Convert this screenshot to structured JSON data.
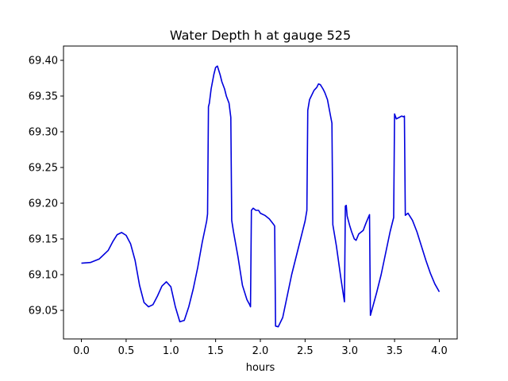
{
  "chart_data": {
    "type": "line",
    "title": "Water Depth h at gauge 525",
    "xlabel": "hours",
    "ylabel": "",
    "xlim": [
      -0.2,
      4.2
    ],
    "ylim": [
      69.01,
      69.42
    ],
    "xticks": [
      0.0,
      0.5,
      1.0,
      1.5,
      2.0,
      2.5,
      3.0,
      3.5,
      4.0
    ],
    "xtick_labels": [
      "0.0",
      "0.5",
      "1.0",
      "1.5",
      "2.0",
      "2.5",
      "3.0",
      "3.5",
      "4.0"
    ],
    "yticks": [
      69.05,
      69.1,
      69.15,
      69.2,
      69.25,
      69.3,
      69.35,
      69.4
    ],
    "ytick_labels": [
      "69.05",
      "69.10",
      "69.15",
      "69.20",
      "69.25",
      "69.30",
      "69.35",
      "69.40"
    ],
    "grid": false,
    "legend": "none",
    "colors": {
      "series": "#0000dd",
      "axes": "#000000",
      "background": "#ffffff"
    },
    "series": [
      {
        "values_x": [
          0.0,
          0.1,
          0.2,
          0.3,
          0.35,
          0.4,
          0.45,
          0.5,
          0.55,
          0.6,
          0.65,
          0.7,
          0.75,
          0.8,
          0.85,
          0.9,
          0.95,
          1.0,
          1.05,
          1.1,
          1.15,
          1.2,
          1.25,
          1.3,
          1.35,
          1.4,
          1.41,
          1.42,
          1.43,
          1.45,
          1.48,
          1.5,
          1.52,
          1.55,
          1.57,
          1.6,
          1.62,
          1.65,
          1.67,
          1.68,
          1.7,
          1.75,
          1.8,
          1.85,
          1.88,
          1.89,
          1.9,
          1.92,
          1.95,
          1.98,
          2.0,
          2.05,
          2.1,
          2.15,
          2.16,
          2.17,
          2.2,
          2.25,
          2.3,
          2.35,
          2.4,
          2.45,
          2.5,
          2.52,
          2.53,
          2.55,
          2.6,
          2.63,
          2.65,
          2.67,
          2.7,
          2.72,
          2.75,
          2.78,
          2.8,
          2.81,
          2.85,
          2.9,
          2.93,
          2.94,
          2.95,
          2.96,
          2.97,
          3.0,
          3.02,
          3.05,
          3.07,
          3.1,
          3.15,
          3.18,
          3.2,
          3.22,
          3.23,
          3.25,
          3.3,
          3.35,
          3.4,
          3.45,
          3.48,
          3.49,
          3.5,
          3.52,
          3.55,
          3.58,
          3.6,
          3.61,
          3.62,
          3.65,
          3.7,
          3.75,
          3.8,
          3.85,
          3.9,
          3.95,
          4.0
        ],
        "values_y": [
          69.116,
          69.117,
          69.122,
          69.134,
          69.146,
          69.156,
          69.159,
          69.155,
          69.143,
          69.12,
          69.085,
          69.061,
          69.055,
          69.058,
          69.07,
          69.084,
          69.09,
          69.083,
          69.055,
          69.034,
          69.036,
          69.055,
          69.08,
          69.11,
          69.145,
          69.175,
          69.185,
          69.335,
          69.34,
          69.36,
          69.38,
          69.39,
          69.392,
          69.38,
          69.37,
          69.36,
          69.35,
          69.34,
          69.32,
          69.176,
          69.16,
          69.125,
          69.085,
          69.065,
          69.058,
          69.055,
          69.19,
          69.193,
          69.19,
          69.19,
          69.186,
          69.183,
          69.178,
          69.17,
          69.168,
          69.028,
          69.027,
          69.04,
          69.07,
          69.1,
          69.125,
          69.15,
          69.175,
          69.19,
          69.33,
          69.345,
          69.358,
          69.362,
          69.367,
          69.366,
          69.36,
          69.355,
          69.345,
          69.325,
          69.312,
          69.17,
          69.14,
          69.095,
          69.07,
          69.062,
          69.196,
          69.197,
          69.182,
          69.168,
          69.16,
          69.15,
          69.148,
          69.157,
          69.162,
          69.172,
          69.178,
          69.184,
          69.043,
          69.052,
          69.075,
          69.1,
          69.13,
          69.16,
          69.175,
          69.18,
          69.325,
          69.318,
          69.32,
          69.322,
          69.321,
          69.322,
          69.183,
          69.186,
          69.176,
          69.16,
          69.14,
          69.12,
          69.102,
          69.087,
          69.076
        ]
      }
    ]
  }
}
